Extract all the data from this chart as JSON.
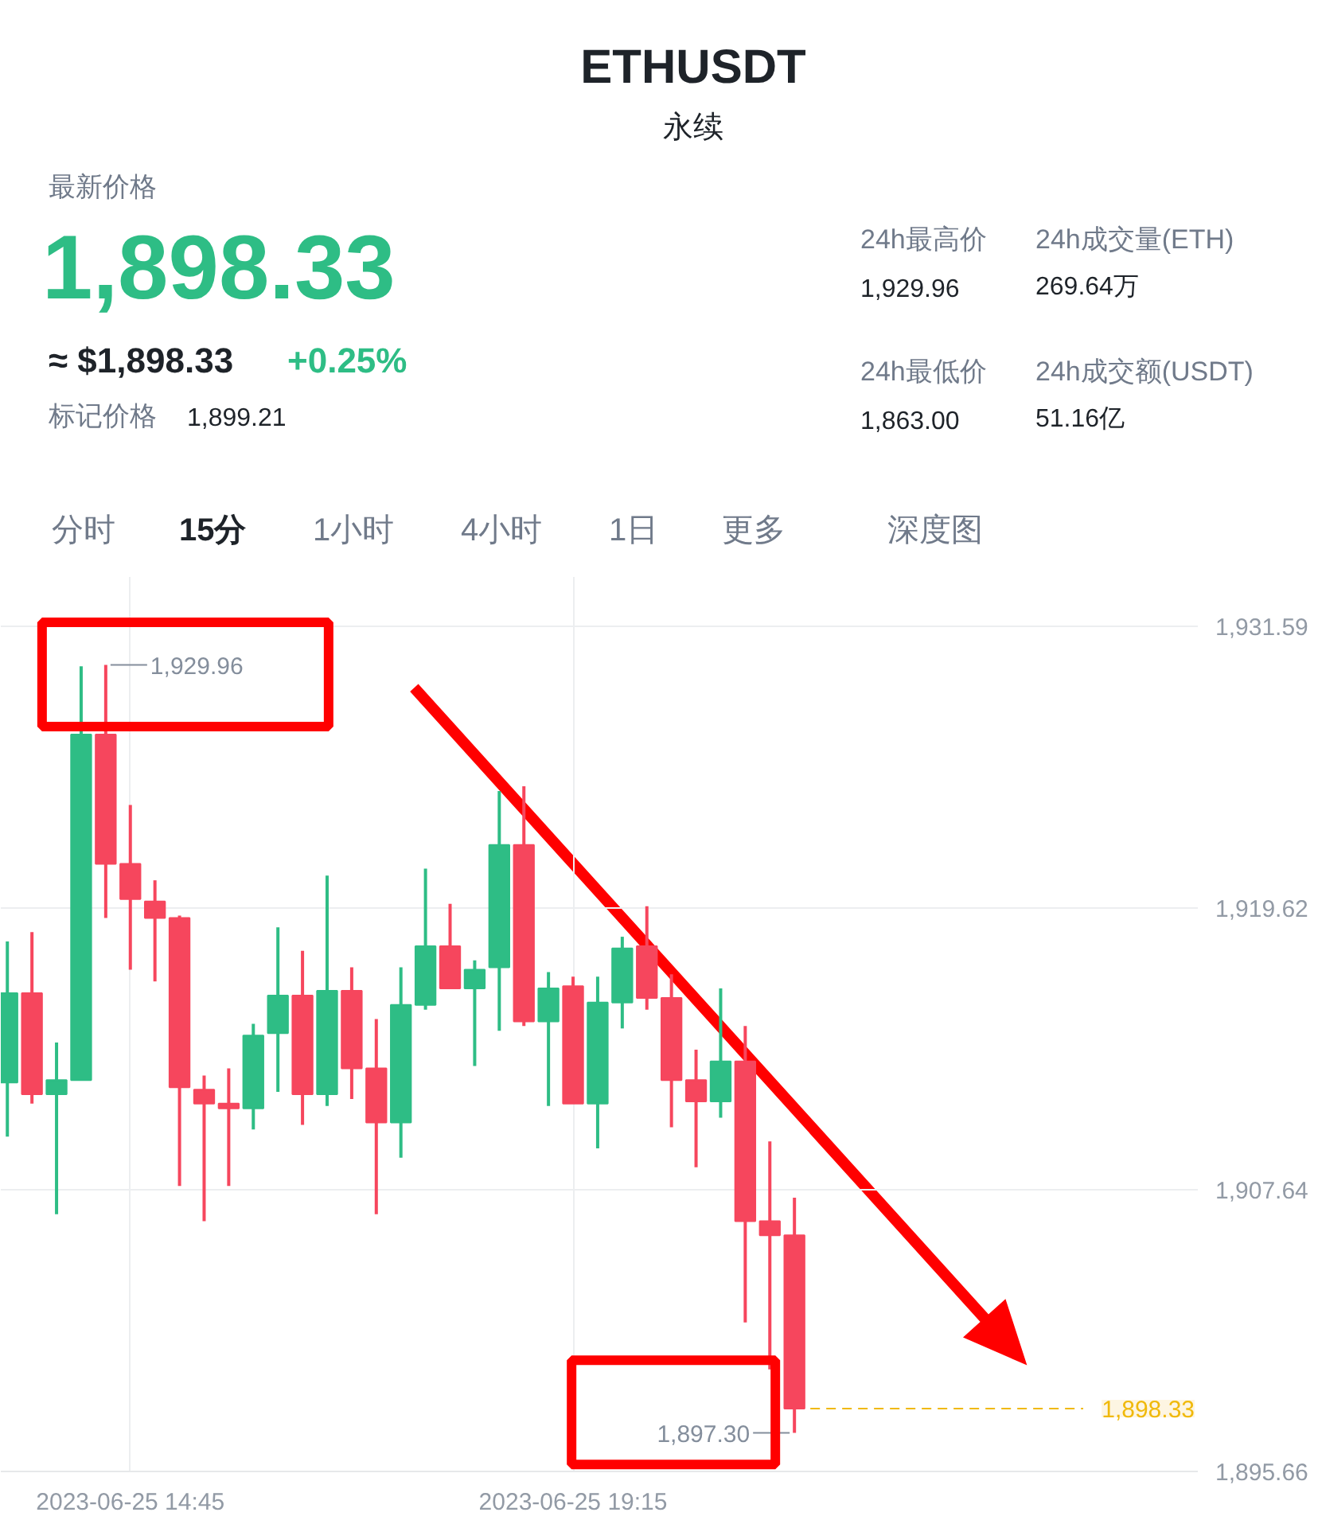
{
  "chart_data": {
    "type": "candlestick",
    "title": "ETHUSDT",
    "subtitle": "永续",
    "annotations": [
      "最新价格",
      "1,898.33",
      "≈ $1,898.33",
      "+0.25%",
      "标记价格",
      "1,899.21",
      "24h最高价",
      "1,929.96",
      "24h成交量(ETH)",
      "269.64万",
      "24h最低价",
      "1,863.00",
      "24h成交额(USDT)",
      "51.16亿",
      "分时",
      "15分",
      "1小时",
      "4小时",
      "1日",
      "更多",
      "深度图",
      {
        "text": "1,929.96",
        "x": "2023-06-25T14:30",
        "y": 1929.96
      },
      {
        "text": "1,897.30",
        "x": "2023-06-25T21:30",
        "y": 1897.3
      }
    ],
    "x": [
      "2023-06-25T13:30",
      "2023-06-25T13:45",
      "2023-06-25T14:00",
      "2023-06-25T14:15",
      "2023-06-25T14:30",
      "2023-06-25T14:45",
      "2023-06-25T15:00",
      "2023-06-25T15:15",
      "2023-06-25T15:30",
      "2023-06-25T15:45",
      "2023-06-25T16:00",
      "2023-06-25T16:15",
      "2023-06-25T16:30",
      "2023-06-25T16:45",
      "2023-06-25T17:00",
      "2023-06-25T17:15",
      "2023-06-25T17:30",
      "2023-06-25T17:45",
      "2023-06-25T18:00",
      "2023-06-25T18:15",
      "2023-06-25T18:30",
      "2023-06-25T18:45",
      "2023-06-25T19:00",
      "2023-06-25T19:15",
      "2023-06-25T19:30",
      "2023-06-25T19:45",
      "2023-06-25T20:00",
      "2023-06-25T20:15",
      "2023-06-25T20:30",
      "2023-06-25T20:45",
      "2023-06-25T21:00",
      "2023-06-25T21:15",
      "2023-06-25T21:30"
    ],
    "ohlc": [
      [
        1912.2,
        1918.2,
        1909.9,
        1916.0
      ],
      [
        1916.0,
        1918.6,
        1911.3,
        1911.7
      ],
      [
        1911.7,
        1913.9,
        1906.6,
        1912.3
      ],
      [
        1912.3,
        1929.9,
        1912.3,
        1927.0
      ],
      [
        1927.0,
        1929.96,
        1919.2,
        1921.5
      ],
      [
        1921.5,
        1924.0,
        1917.0,
        1920.0
      ],
      [
        1919.9,
        1920.8,
        1916.5,
        1919.2
      ],
      [
        1919.2,
        1919.3,
        1907.8,
        1912.0
      ],
      [
        1911.9,
        1912.5,
        1906.3,
        1911.3
      ],
      [
        1911.3,
        1912.8,
        1907.8,
        1911.1
      ],
      [
        1911.1,
        1914.7,
        1910.2,
        1914.2
      ],
      [
        1914.3,
        1918.8,
        1911.8,
        1915.9
      ],
      [
        1915.9,
        1917.8,
        1910.4,
        1911.7
      ],
      [
        1911.7,
        1921.0,
        1911.2,
        1916.1
      ],
      [
        1916.1,
        1917.1,
        1911.5,
        1912.8
      ],
      [
        1912.8,
        1914.9,
        1906.6,
        1910.5
      ],
      [
        1910.5,
        1917.1,
        1909.0,
        1915.5
      ],
      [
        1915.5,
        1921.3,
        1915.3,
        1918.0
      ],
      [
        1918.0,
        1919.8,
        1916.2,
        1916.2
      ],
      [
        1916.2,
        1917.4,
        1912.9,
        1917.0
      ],
      [
        1917.1,
        1924.6,
        1914.4,
        1922.3
      ],
      [
        1922.3,
        1924.8,
        1914.6,
        1914.8
      ],
      [
        1914.8,
        1916.9,
        1911.2,
        1916.2
      ],
      [
        1916.3,
        1916.7,
        1911.3,
        1911.3
      ],
      [
        1911.3,
        1916.7,
        1909.4,
        1915.6
      ],
      [
        1915.6,
        1918.4,
        1914.5,
        1917.9
      ],
      [
        1918.0,
        1919.7,
        1915.3,
        1915.8
      ],
      [
        1915.8,
        1916.8,
        1910.3,
        1912.3
      ],
      [
        1912.3,
        1913.6,
        1908.6,
        1911.4
      ],
      [
        1911.4,
        1916.2,
        1910.7,
        1913.1
      ],
      [
        1913.1,
        1914.6,
        1902.0,
        1906.3
      ],
      [
        1906.3,
        1909.7,
        1900.0,
        1905.7
      ],
      [
        1905.7,
        1907.3,
        1897.3,
        1898.33
      ]
    ],
    "colors": [
      "#2ebd85",
      "#f6465d",
      "#2ebd85",
      "#2ebd85",
      "#f6465d",
      "#f6465d",
      "#f6465d",
      "#f6465d",
      "#f6465d",
      "#f6465d",
      "#2ebd85",
      "#2ebd85",
      "#f6465d",
      "#2ebd85",
      "#f6465d",
      "#f6465d",
      "#2ebd85",
      "#2ebd85",
      "#f6465d",
      "#2ebd85",
      "#2ebd85",
      "#f6465d",
      "#2ebd85",
      "#f6465d",
      "#2ebd85",
      "#2ebd85",
      "#f6465d",
      "#f6465d",
      "#f6465d",
      "#2ebd85",
      "#f6465d",
      "#f6465d",
      "#f6465d"
    ],
    "xlim": [
      "2023-06-25T13:26",
      "2023-06-26T01:36"
    ],
    "xticks": [
      {
        "value": "2023-06-25T14:45",
        "label": "2023-06-25 14:45"
      },
      {
        "value": "2023-06-25T19:15",
        "label": "2023-06-25 19:15"
      }
    ],
    "ylim": [
      1895.66,
      1933.7
    ],
    "yticks": [
      {
        "value": 1895.66,
        "label": "1,895.66"
      },
      {
        "value": 1907.64,
        "label": "1,907.64"
      },
      {
        "value": 1919.62,
        "label": "1,919.62"
      },
      {
        "value": 1931.59,
        "label": "1,931.59"
      }
    ],
    "grid": true,
    "ref_lines": [
      {
        "axis": "y",
        "value": 1898.33,
        "label": "1,898.33",
        "color": "#f0b90b",
        "line_style": "dashed"
      }
    ]
  }
}
